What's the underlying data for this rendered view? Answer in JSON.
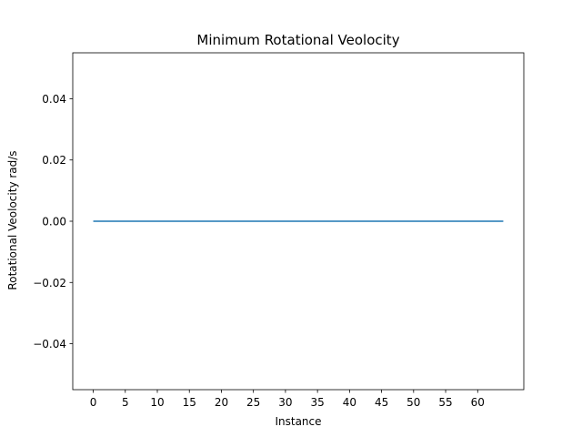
{
  "chart_data": {
    "type": "line",
    "title": "Minimum Rotational Veolocity",
    "xlabel": "Instance",
    "ylabel": "Rotational Veolocity rad/s",
    "xlim": [
      -3.2,
      67.2
    ],
    "ylim": [
      -0.055,
      0.055
    ],
    "xticks": [
      0,
      5,
      10,
      15,
      20,
      25,
      30,
      35,
      40,
      45,
      50,
      55,
      60
    ],
    "xtick_labels": [
      "0",
      "5",
      "10",
      "15",
      "20",
      "25",
      "30",
      "35",
      "40",
      "45",
      "50",
      "55",
      "60"
    ],
    "yticks": [
      -0.04,
      -0.02,
      0.0,
      0.02,
      0.04
    ],
    "ytick_labels": [
      "−0.04",
      "−0.02",
      "0.00",
      "0.02",
      "0.04"
    ],
    "grid": false,
    "series": [
      {
        "color": "#1f77b4",
        "x": [
          0,
          64
        ],
        "y": [
          0,
          0
        ]
      }
    ]
  }
}
